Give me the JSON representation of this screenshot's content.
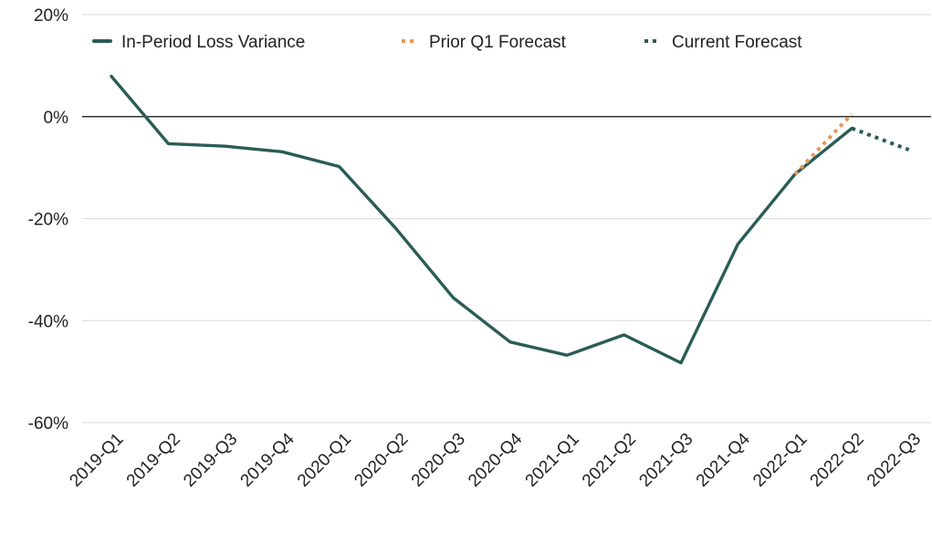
{
  "chart_data": {
    "type": "line",
    "title": "",
    "xlabel": "",
    "ylabel": "",
    "categories": [
      "2019-Q1",
      "2019-Q2",
      "2019-Q3",
      "2019-Q4",
      "2020-Q1",
      "2020-Q2",
      "2020-Q3",
      "2020-Q4",
      "2021-Q1",
      "2021-Q2",
      "2021-Q3",
      "2021-Q4",
      "2022-Q1",
      "2022-Q2",
      "2022-Q3"
    ],
    "ylim": [
      -60,
      20
    ],
    "y_ticks": [
      20,
      0,
      -20,
      -40,
      -60
    ],
    "y_tick_format": "%",
    "grid": true,
    "legend_position": "top",
    "series": [
      {
        "name": "In-Period Loss Variance",
        "style": "solid",
        "color": "#2a5c56",
        "values": [
          7.9,
          -5.3,
          -5.8,
          -6.9,
          -9.8,
          -22.0,
          -35.5,
          -44.2,
          -46.8,
          -42.8,
          -48.3,
          -25.0,
          -11.3,
          -2.3,
          null
        ]
      },
      {
        "name": "Prior Q1 Forecast",
        "style": "dotted",
        "color": "#e59a5a",
        "values": [
          null,
          null,
          null,
          null,
          null,
          null,
          null,
          null,
          null,
          null,
          null,
          null,
          -11.3,
          0.5,
          null
        ]
      },
      {
        "name": "Current Forecast",
        "style": "dotted",
        "color": "#2a5c56",
        "values": [
          null,
          null,
          null,
          null,
          null,
          null,
          null,
          null,
          null,
          null,
          null,
          null,
          null,
          -2.3,
          -6.5
        ]
      }
    ]
  }
}
